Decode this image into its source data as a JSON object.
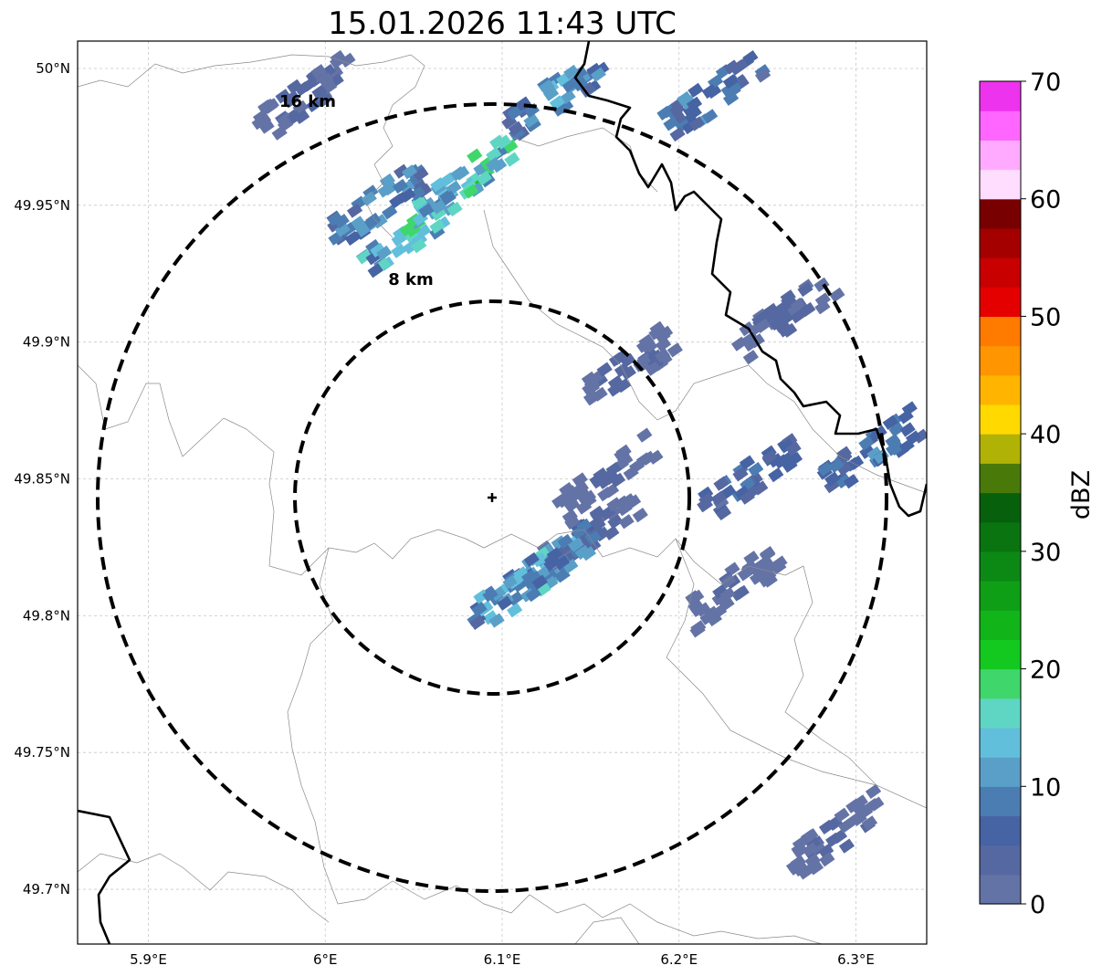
{
  "title": "15.01.2026 11:43 UTC",
  "map": {
    "lon_range": [
      5.86,
      6.34
    ],
    "lat_range": [
      49.68,
      50.01
    ],
    "lon_ticks": [
      {
        "value": 5.9,
        "label": "5.9°E"
      },
      {
        "value": 6.0,
        "label": "6°E"
      },
      {
        "value": 6.1,
        "label": "6.1°E"
      },
      {
        "value": 6.2,
        "label": "6.2°E"
      },
      {
        "value": 6.3,
        "label": "6.3°E"
      }
    ],
    "lat_ticks": [
      {
        "value": 50.0,
        "label": "50°N"
      },
      {
        "value": 49.95,
        "label": "49.95°N"
      },
      {
        "value": 49.9,
        "label": "49.9°N"
      },
      {
        "value": 49.85,
        "label": "49.85°N"
      },
      {
        "value": 49.8,
        "label": "49.8°N"
      },
      {
        "value": 49.75,
        "label": "49.75°N"
      },
      {
        "value": 49.7,
        "label": "49.7°N"
      }
    ],
    "gridlines": true,
    "radar_site": {
      "lon": 6.095,
      "lat": 49.843
    },
    "range_rings": [
      {
        "label": "8 km",
        "label_lon": 6.048,
        "label_lat": 49.923
      },
      {
        "label": "16 km",
        "label_lon": 5.991,
        "label_lat": 49.988
      }
    ]
  },
  "colorbar": {
    "label": "dBZ",
    "min": 0,
    "max": 70,
    "tick_labels": [
      "0",
      "10",
      "20",
      "30",
      "40",
      "50",
      "60",
      "70"
    ],
    "colors": [
      "#6473a6",
      "#5668a1",
      "#4663a4",
      "#4b7db3",
      "#5a9fc8",
      "#62bfdc",
      "#5fd6c4",
      "#3fd76b",
      "#13c91f",
      "#11b51a",
      "#0f9f16",
      "#0b8914",
      "#0a7411",
      "#07600c",
      "#497a09",
      "#b0b205",
      "#ffd900",
      "#ffb500",
      "#ff9500",
      "#ff7b00",
      "#e50000",
      "#c80000",
      "#a40000",
      "#790000",
      "#ffddff",
      "#ffaaff",
      "#ff66ff",
      "#ee33ee"
    ]
  },
  "echo_cells": [
    {
      "lon": 6.15,
      "lat": 49.83,
      "dbz": 6
    },
    {
      "lon": 6.13,
      "lat": 49.82,
      "dbz": 15
    },
    {
      "lon": 6.11,
      "lat": 49.81,
      "dbz": 16
    },
    {
      "lon": 6.16,
      "lat": 49.85,
      "dbz": 4
    },
    {
      "lon": 6.17,
      "lat": 49.89,
      "dbz": 5
    },
    {
      "lon": 6.05,
      "lat": 49.94,
      "dbz": 18
    },
    {
      "lon": 6.08,
      "lat": 49.96,
      "dbz": 20
    },
    {
      "lon": 6.03,
      "lat": 49.95,
      "dbz": 13
    },
    {
      "lon": 6.13,
      "lat": 49.99,
      "dbz": 13
    },
    {
      "lon": 6.22,
      "lat": 49.99,
      "dbz": 12
    },
    {
      "lon": 6.26,
      "lat": 49.91,
      "dbz": 5
    },
    {
      "lon": 6.31,
      "lat": 49.86,
      "dbz": 11
    },
    {
      "lon": 6.24,
      "lat": 49.85,
      "dbz": 9
    },
    {
      "lon": 5.99,
      "lat": 49.99,
      "dbz": 5
    },
    {
      "lon": 6.29,
      "lat": 49.72,
      "dbz": 5
    },
    {
      "lon": 6.23,
      "lat": 49.81,
      "dbz": 4
    }
  ]
}
